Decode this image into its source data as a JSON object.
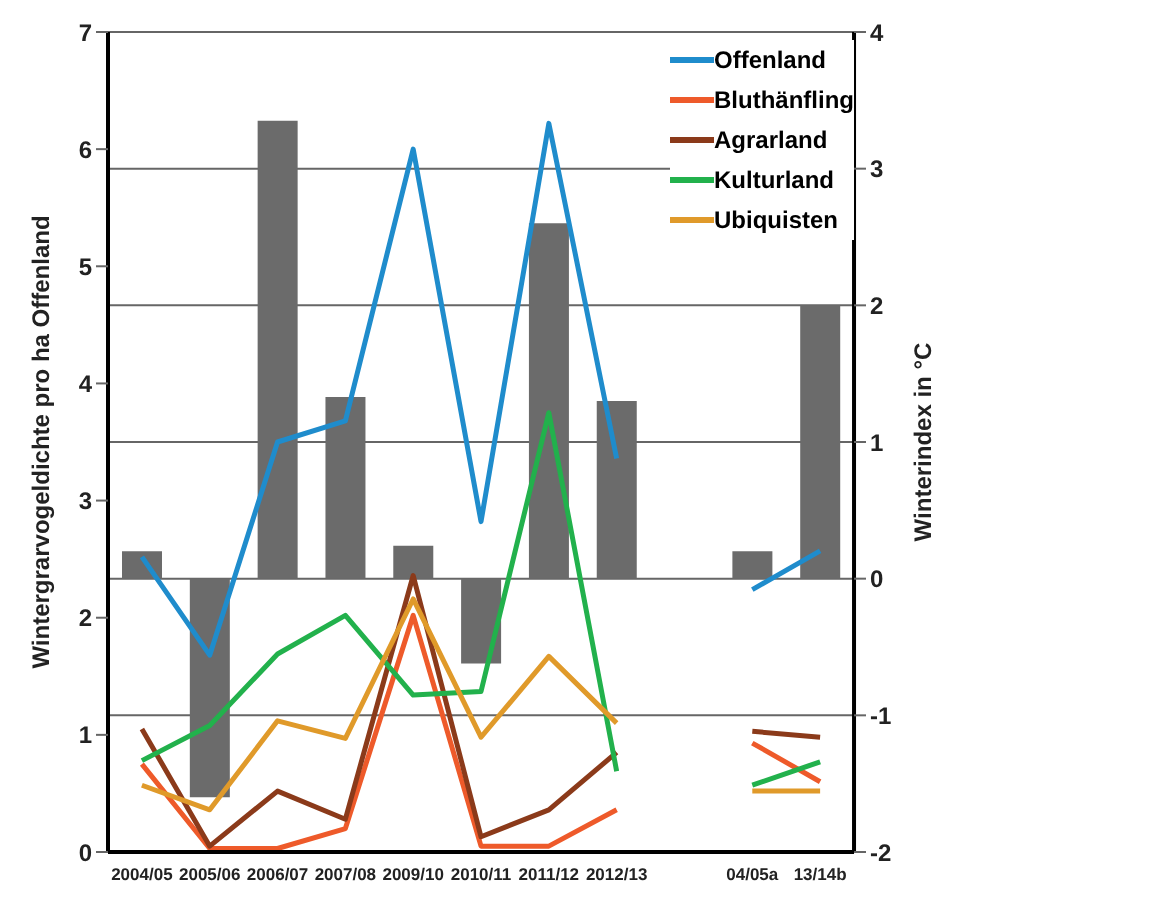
{
  "chart_data": {
    "type": "line",
    "xlabel": null,
    "ylabel": "Wintergrarvogeldichte pro ha Offenland",
    "y2label": "Winterindex in °C",
    "categories": [
      "2004/05",
      "2005/06",
      "2006/07",
      "2007/08",
      "2009/10",
      "2010/11",
      "2011/12",
      "2012/13",
      null,
      "04/05a",
      "13/14b"
    ],
    "series": [
      {
        "type": "bar",
        "axis": "y2",
        "color": "#6b6b6b",
        "values": [
          0.2,
          -1.6,
          3.35,
          1.33,
          0.24,
          -0.62,
          2.6,
          1.3,
          null,
          0.2,
          2.0
        ]
      },
      {
        "name": "Offenland",
        "color": "#1f8ccc",
        "values": [
          2.52,
          1.68,
          3.5,
          3.68,
          6.0,
          2.82,
          6.22,
          3.36,
          null,
          2.24,
          2.57
        ]
      },
      {
        "name": "Bluthänfling",
        "color": "#ee5a2a",
        "values": [
          0.75,
          0.03,
          0.03,
          0.2,
          2.02,
          0.05,
          0.05,
          0.36,
          null,
          0.93,
          0.6
        ]
      },
      {
        "name": "Agrarland",
        "color": "#8b3a1a",
        "values": [
          1.05,
          0.05,
          0.52,
          0.28,
          2.36,
          0.13,
          0.36,
          0.85,
          null,
          1.03,
          0.98
        ]
      },
      {
        "name": "Kulturland",
        "color": "#22b14c",
        "values": [
          0.78,
          1.08,
          1.69,
          2.02,
          1.34,
          1.37,
          3.75,
          0.69,
          null,
          0.57,
          0.77
        ]
      },
      {
        "name": "Ubiquisten",
        "color": "#e09a2a",
        "values": [
          0.57,
          0.36,
          1.12,
          0.97,
          2.16,
          0.98,
          1.67,
          1.1,
          null,
          0.52,
          0.52
        ]
      }
    ],
    "ylim": [
      0,
      7
    ],
    "yticks": [
      0,
      1,
      2,
      3,
      4,
      5,
      6,
      7
    ],
    "y2lim": [
      -2,
      4
    ],
    "y2ticks": [
      -2,
      -1,
      0,
      1,
      2,
      3,
      4
    ],
    "grid": "y",
    "legend": "top right",
    "marker": "none"
  }
}
